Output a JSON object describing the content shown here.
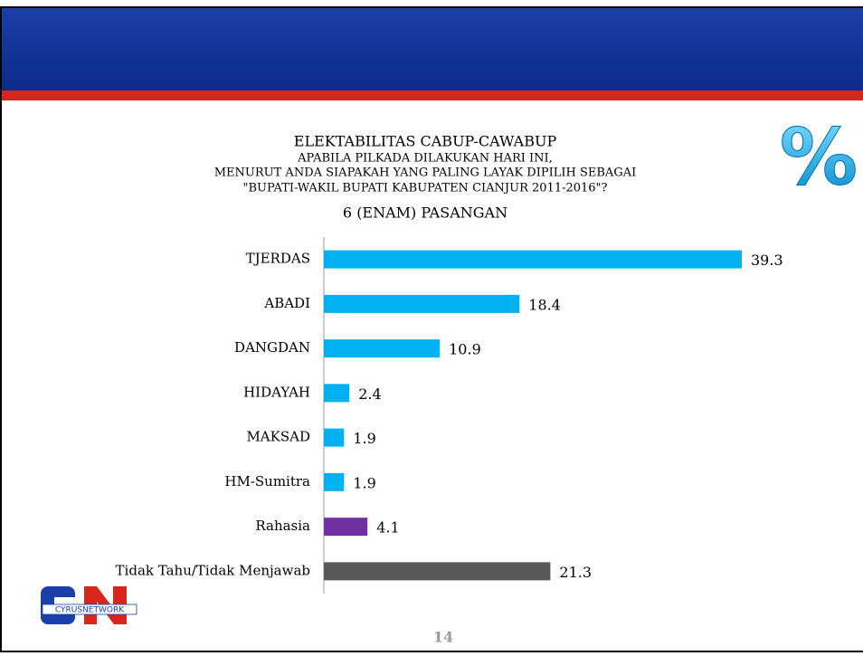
{
  "chart_data": {
    "type": "bar",
    "orientation": "horizontal",
    "title": "ELEKTABILITAS CABUP-CAWABUP",
    "subtitle": [
      "APABILA PILKADA DILAKUKAN HARI INI,",
      "MENURUT ANDA SIAPAKAH YANG PALING LAYAK DIPILIH SEBAGAI",
      "\"BUPATI-WAKIL BUPATI KABUPATEN CIANJUR 2011-2016\"?"
    ],
    "caption": "6 (ENAM) PASANGAN",
    "categories": [
      "TJERDAS",
      "ABADI",
      "DANGDAN",
      "HIDAYAH",
      "MAKSAD",
      "HM-Sumitra",
      "Rahasia",
      "Tidak Tahu/Tidak Menjawab"
    ],
    "values": [
      39.3,
      18.4,
      10.9,
      2.4,
      1.9,
      1.9,
      4.1,
      21.3
    ],
    "colors": [
      "#00b0f0",
      "#00b0f0",
      "#00b0f0",
      "#00b0f0",
      "#00b0f0",
      "#00b0f0",
      "#7030a0",
      "#595959"
    ]
  },
  "badge": "%",
  "logo": "CYRUSNETWORK",
  "page_number": "14"
}
